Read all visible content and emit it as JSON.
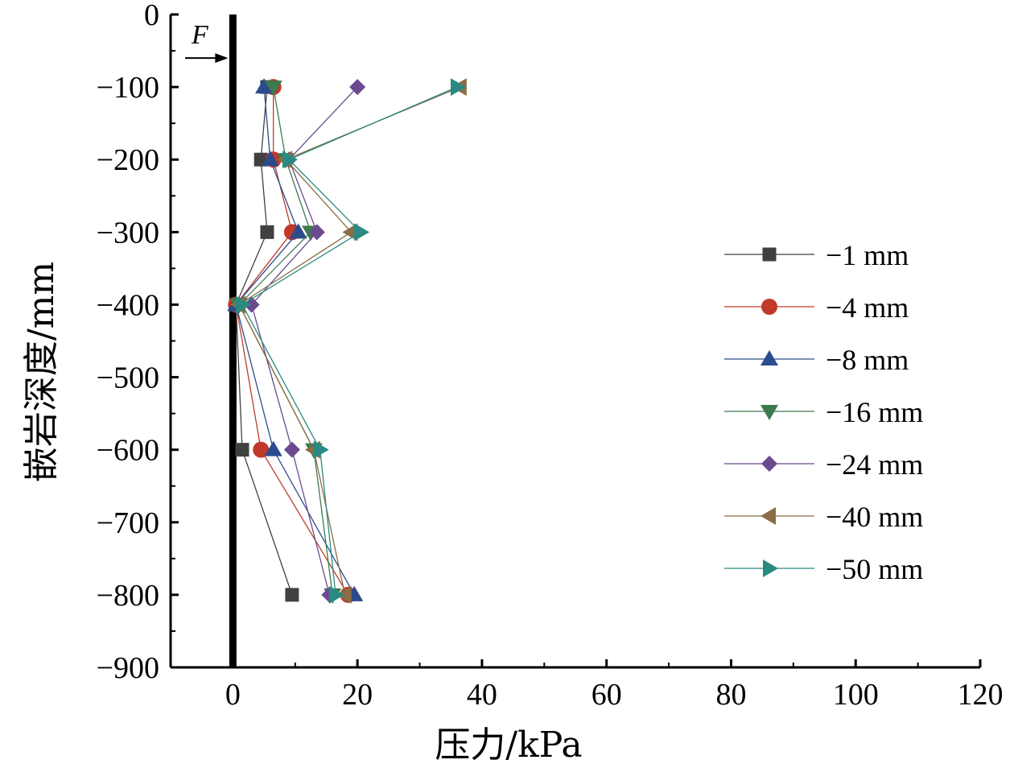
{
  "chart_data": {
    "type": "line",
    "title": "",
    "xlabel": "压力/kPa",
    "ylabel": "嵌岩深度/mm",
    "xlim": [
      -10,
      120
    ],
    "ylim": [
      -900,
      0
    ],
    "xticks": [
      0,
      20,
      40,
      60,
      80,
      100,
      120
    ],
    "yticks": [
      0,
      -100,
      -200,
      -300,
      -400,
      -500,
      -600,
      -700,
      -800,
      -900
    ],
    "xtick_labels": [
      "0",
      "20",
      "40",
      "60",
      "80",
      "100",
      "120"
    ],
    "ytick_labels": [
      "0",
      "−100",
      "−200",
      "−300",
      "−400",
      "−500",
      "−600",
      "−700",
      "−800",
      "−900"
    ],
    "grid": false,
    "legend_position": "right",
    "pile_line_x": 0,
    "force_annotation": {
      "label": "F",
      "depth": -60
    },
    "depths": [
      -100,
      -200,
      -300,
      -400,
      -600,
      -800
    ],
    "series": [
      {
        "name": "−1 mm",
        "color": "#404040",
        "marker": "square",
        "x": [
          5.5,
          4.5,
          5.5,
          0.5,
          1.5,
          9.5
        ]
      },
      {
        "name": "−4 mm",
        "color": "#c0392b",
        "marker": "circle",
        "x": [
          6.5,
          6.5,
          9.5,
          0.5,
          4.5,
          18.5
        ]
      },
      {
        "name": "−8 mm",
        "color": "#2b4c8c",
        "marker": "triangle-up",
        "x": [
          5.0,
          6.0,
          10.5,
          0.5,
          6.5,
          19.5
        ]
      },
      {
        "name": "−16 mm",
        "color": "#3d7a4f",
        "marker": "triangle-down",
        "x": [
          6.5,
          8.5,
          12.5,
          1.0,
          13.0,
          16.0
        ]
      },
      {
        "name": "−24 mm",
        "color": "#6b4a8f",
        "marker": "diamond",
        "x": [
          20.0,
          9.0,
          13.5,
          3.0,
          9.5,
          15.5
        ]
      },
      {
        "name": "−40 mm",
        "color": "#8a6d45",
        "marker": "triangle-left",
        "x": [
          36.5,
          8.5,
          19.0,
          1.0,
          13.0,
          18.0
        ]
      },
      {
        "name": "−50 mm",
        "color": "#2a8a82",
        "marker": "triangle-right",
        "x": [
          36.0,
          9.0,
          20.5,
          1.5,
          14.0,
          16.5
        ]
      }
    ]
  }
}
